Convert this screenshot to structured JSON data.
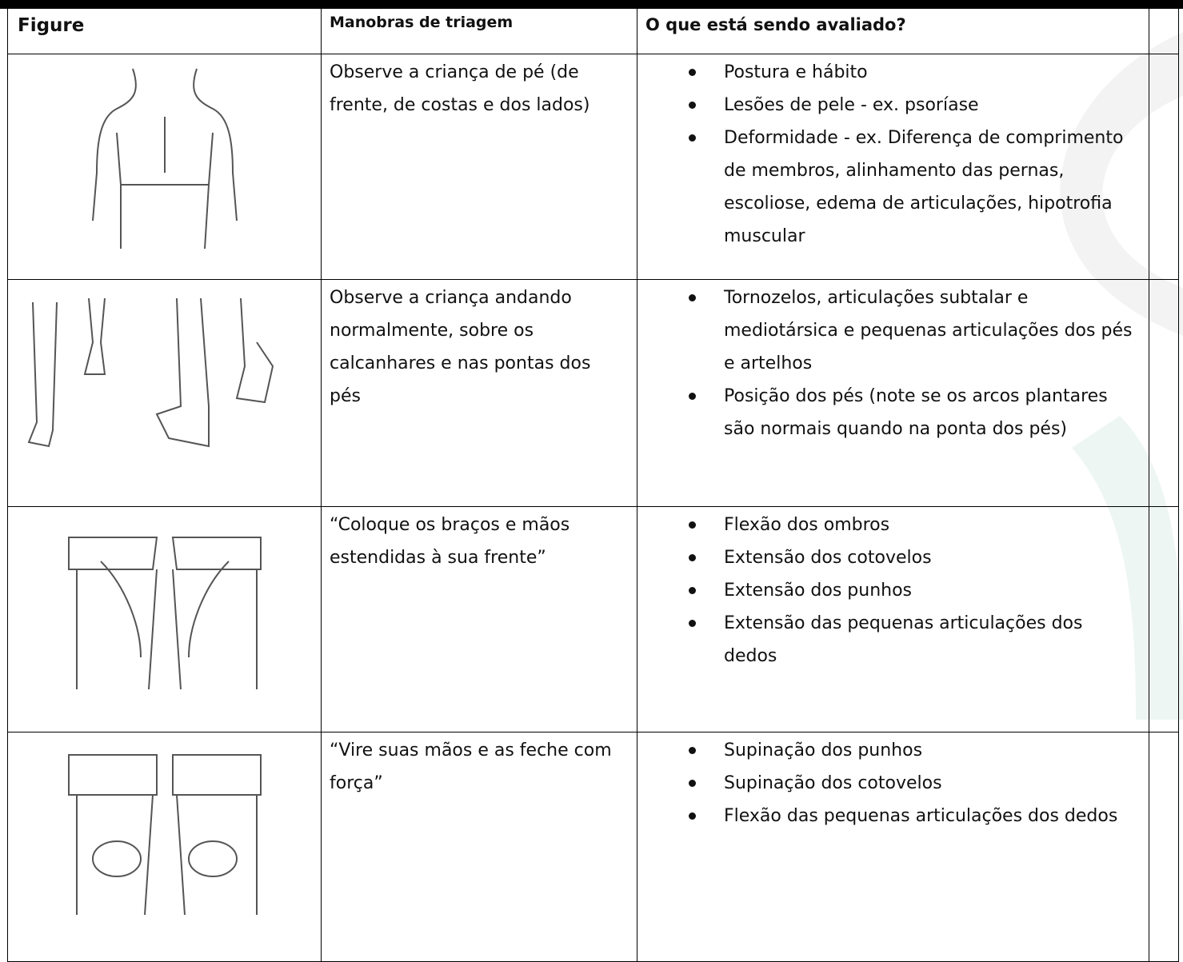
{
  "table": {
    "header": [
      "Figure",
      "Manobras de triagem",
      "O que está sendo avaliado?"
    ],
    "rows": [
      {
        "maneuver": "Observe a criança de pé (de frente, de costas e dos lados)",
        "items": [
          "Postura e hábito",
          "Lesões de pele - ex. psoríase",
          "Deformidade - ex. Diferença de comprimento de membros, alinhamento das pernas, escoliose, edema de articulações, hipotrofia muscular"
        ]
      },
      {
        "maneuver": "Observe a criança andando normalmente, sobre os calcanhares e nas pontas dos pés",
        "items": [
          "Tornozelos, articulações subtalar e mediotársica e pequenas articulações dos pés e artelhos",
          "Posição dos pés (note se os arcos plantares são normais quando na ponta dos pés)"
        ]
      },
      {
        "maneuver": "“Coloque os braços e mãos estendidas à sua frente”",
        "items": [
          "Flexão dos ombros",
          "Extensão dos cotovelos",
          "Extensão dos punhos",
          "Extensão das pequenas articulações dos dedos"
        ]
      },
      {
        "maneuver": "“Vire suas mãos e as feche com força”",
        "items": [
          "Supinação dos punhos",
          "Supinação dos cotovelos",
          "Flexão das pequenas articulações dos dedos"
        ]
      }
    ]
  }
}
